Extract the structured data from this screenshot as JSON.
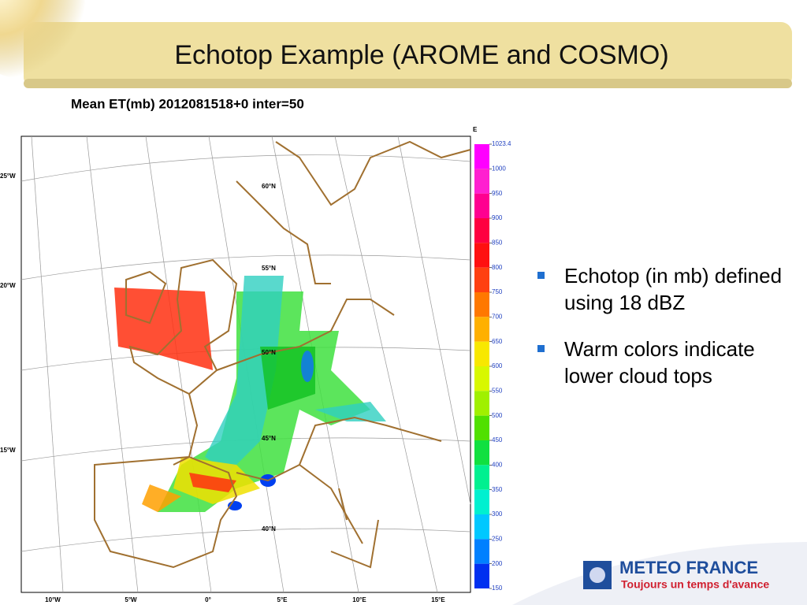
{
  "header": {
    "title": "Echotop Example (AROME and COSMO)"
  },
  "map": {
    "title": "Mean ET(mb) 2012081518+0 inter=50",
    "lon_labels_left": [
      "25°W",
      "20°W",
      "15°W"
    ],
    "lon_labels_bottom": [
      "10°W",
      "5°W",
      "0°",
      "5°E",
      "10°E",
      "15°E"
    ],
    "lat_labels": [
      "60°N",
      "55°N",
      "50°N",
      "45°N",
      "40°N"
    ]
  },
  "colorbar": {
    "unit": "E",
    "ticks": [
      1023.4,
      1000,
      950,
      900,
      850,
      800,
      750,
      700,
      650,
      600,
      550,
      500,
      450,
      400,
      350,
      300,
      250,
      200,
      150
    ],
    "colors": [
      "#ff00ff",
      "#ff20d0",
      "#ff0090",
      "#ff0040",
      "#ff1010",
      "#ff4010",
      "#ff7800",
      "#ffb000",
      "#f8e800",
      "#d8f800",
      "#a0f000",
      "#50e000",
      "#10e040",
      "#00f090",
      "#00f0d0",
      "#00c8ff",
      "#0080ff",
      "#0030f0"
    ]
  },
  "bullets": [
    "Echotop (in mb) defined using 18 dBZ",
    "Warm colors indicate lower cloud tops"
  ],
  "logo": {
    "name": "METEO FRANCE",
    "tagline": "Toujours un temps d'avance"
  }
}
